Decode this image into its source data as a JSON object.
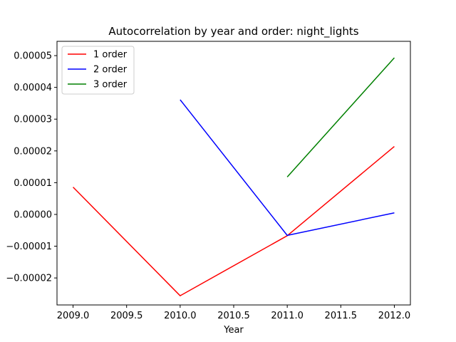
{
  "chart_data": {
    "type": "line",
    "title": "Autocorrelation by year and order: night_lights",
    "xlabel": "Year",
    "ylabel": "",
    "xlim": [
      2008.85,
      2012.15
    ],
    "ylim": [
      -2.85e-05,
      5.45e-05
    ],
    "xticks": [
      2009.0,
      2009.5,
      2010.0,
      2010.5,
      2011.0,
      2011.5,
      2012.0
    ],
    "xtick_labels": [
      "2009.0",
      "2009.5",
      "2010.0",
      "2010.5",
      "2011.0",
      "2011.5",
      "2012.0"
    ],
    "yticks": [
      -2e-05,
      -1e-05,
      0.0,
      1e-05,
      2e-05,
      3e-05,
      4e-05,
      5e-05
    ],
    "ytick_labels": [
      "−0.00002",
      "−0.00001",
      "0.00000",
      "0.00001",
      "0.00002",
      "0.00003",
      "0.00004",
      "0.00005"
    ],
    "grid": false,
    "legend_position": "top-left",
    "series": [
      {
        "name": "1 order",
        "color": "#ff0000",
        "x": [
          2009,
          2010,
          2011,
          2012
        ],
        "y": [
          8.6e-06,
          -2.56e-05,
          -6.7e-06,
          2.14e-05
        ]
      },
      {
        "name": "2 order",
        "color": "#0000ff",
        "x": [
          2010,
          2011,
          2012
        ],
        "y": [
          3.61e-05,
          -6.6e-06,
          5e-07
        ]
      },
      {
        "name": "3 order",
        "color": "#008000",
        "x": [
          2011,
          2012
        ],
        "y": [
          1.18e-05,
          4.93e-05
        ]
      }
    ]
  }
}
